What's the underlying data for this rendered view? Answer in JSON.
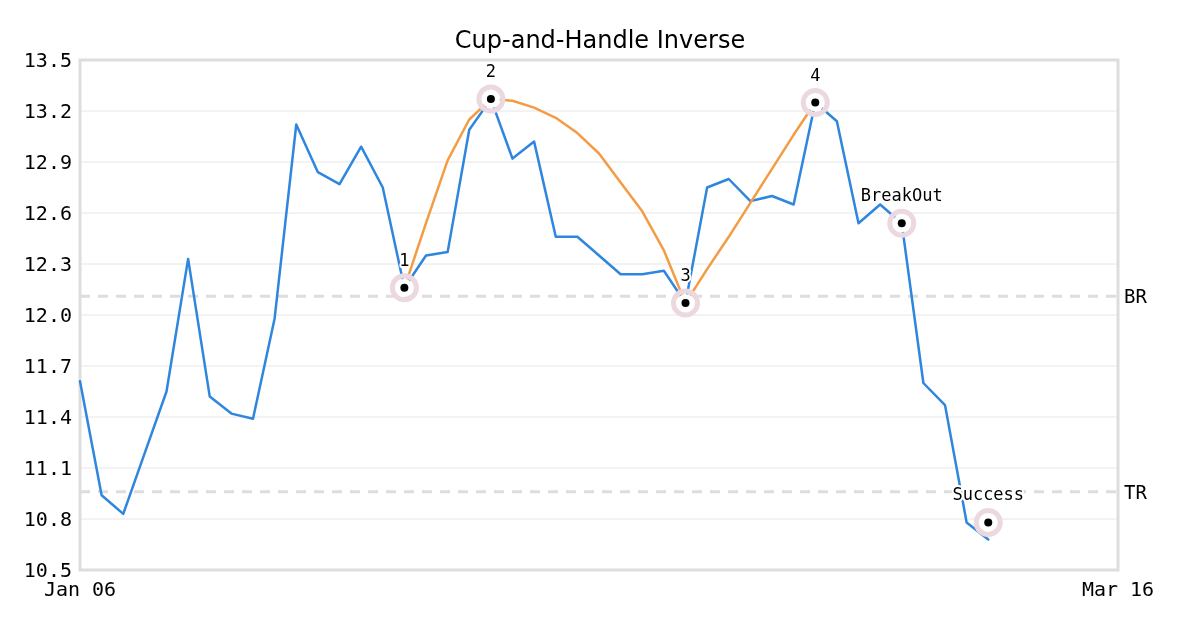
{
  "chart_data": {
    "type": "line",
    "title": "Cup-and-Handle Inverse",
    "categories": [
      "Jan 06",
      null,
      null,
      null,
      null,
      null,
      null,
      null,
      null,
      null,
      null,
      null,
      null,
      null,
      null,
      null,
      null,
      null,
      null,
      null,
      null,
      null,
      null,
      null,
      null,
      null,
      null,
      null,
      null,
      null,
      null,
      null,
      null,
      null,
      null,
      null,
      null,
      null,
      null,
      null,
      null,
      null,
      null,
      null,
      null,
      null,
      null,
      null,
      "Mar 16"
    ],
    "ylim": [
      10.5,
      13.5
    ],
    "yticks": [
      10.5,
      10.8,
      11.1,
      11.4,
      11.7,
      {
        "value": 12,
        "label": "12.0"
      },
      12.3,
      12.6,
      12.9,
      13.2,
      13.5
    ],
    "grid": "y",
    "series": [
      {
        "color": "#2e86de",
        "values": [
          11.61,
          10.94,
          10.83,
          11.19,
          11.55,
          12.33,
          11.52,
          11.42,
          11.39,
          11.98,
          13.12,
          12.84,
          12.77,
          12.99,
          12.75,
          12.16,
          12.35,
          12.37,
          13.09,
          13.27,
          12.92,
          13.02,
          12.46,
          12.46,
          12.35,
          12.24,
          12.24,
          12.26,
          12.07,
          12.75,
          12.8,
          12.67,
          12.7,
          12.65,
          13.25,
          13.14,
          12.54,
          12.65,
          12.54,
          11.6,
          11.47,
          10.78,
          10.68,
          null,
          null,
          null,
          null,
          null,
          null
        ]
      },
      {
        "type": "line",
        "color": "#f39c44",
        "values": [
          null,
          null,
          null,
          null,
          null,
          null,
          null,
          null,
          null,
          null,
          null,
          null,
          null,
          null,
          null,
          12.16,
          12.54,
          12.91,
          13.15,
          13.27,
          13.26,
          13.22,
          13.16,
          13.07,
          12.95,
          12.78,
          12.61,
          12.38,
          12.07,
          12.27,
          12.46,
          12.66,
          12.86,
          13.06,
          13.25,
          null,
          null,
          null,
          null,
          null,
          null,
          null,
          null,
          null,
          null,
          null,
          null,
          null,
          null
        ]
      },
      {
        "type": "scatter",
        "color": "#000000",
        "marker": "circle",
        "values": [
          null,
          null,
          null,
          null,
          null,
          null,
          null,
          null,
          null,
          null,
          null,
          null,
          null,
          null,
          null,
          12.16,
          null,
          null,
          null,
          13.27,
          null,
          null,
          null,
          null,
          null,
          null,
          null,
          null,
          12.07,
          null,
          null,
          null,
          null,
          null,
          13.25,
          null,
          null,
          null,
          12.54,
          null,
          null,
          null,
          10.78,
          null,
          null,
          null,
          null,
          null,
          null
        ]
      }
    ],
    "annotations": [
      "1",
      "2",
      "3",
      "4",
      "BreakOut",
      "Success"
    ],
    "ref_lines": [
      {
        "axis": "y",
        "value": 12.11,
        "label": "BR",
        "color": "#dddddd",
        "line_style": "dashed"
      },
      {
        "axis": "y",
        "value": 10.96,
        "label": "TR",
        "color": "#dddddd",
        "line_style": "dashed"
      }
    ]
  }
}
